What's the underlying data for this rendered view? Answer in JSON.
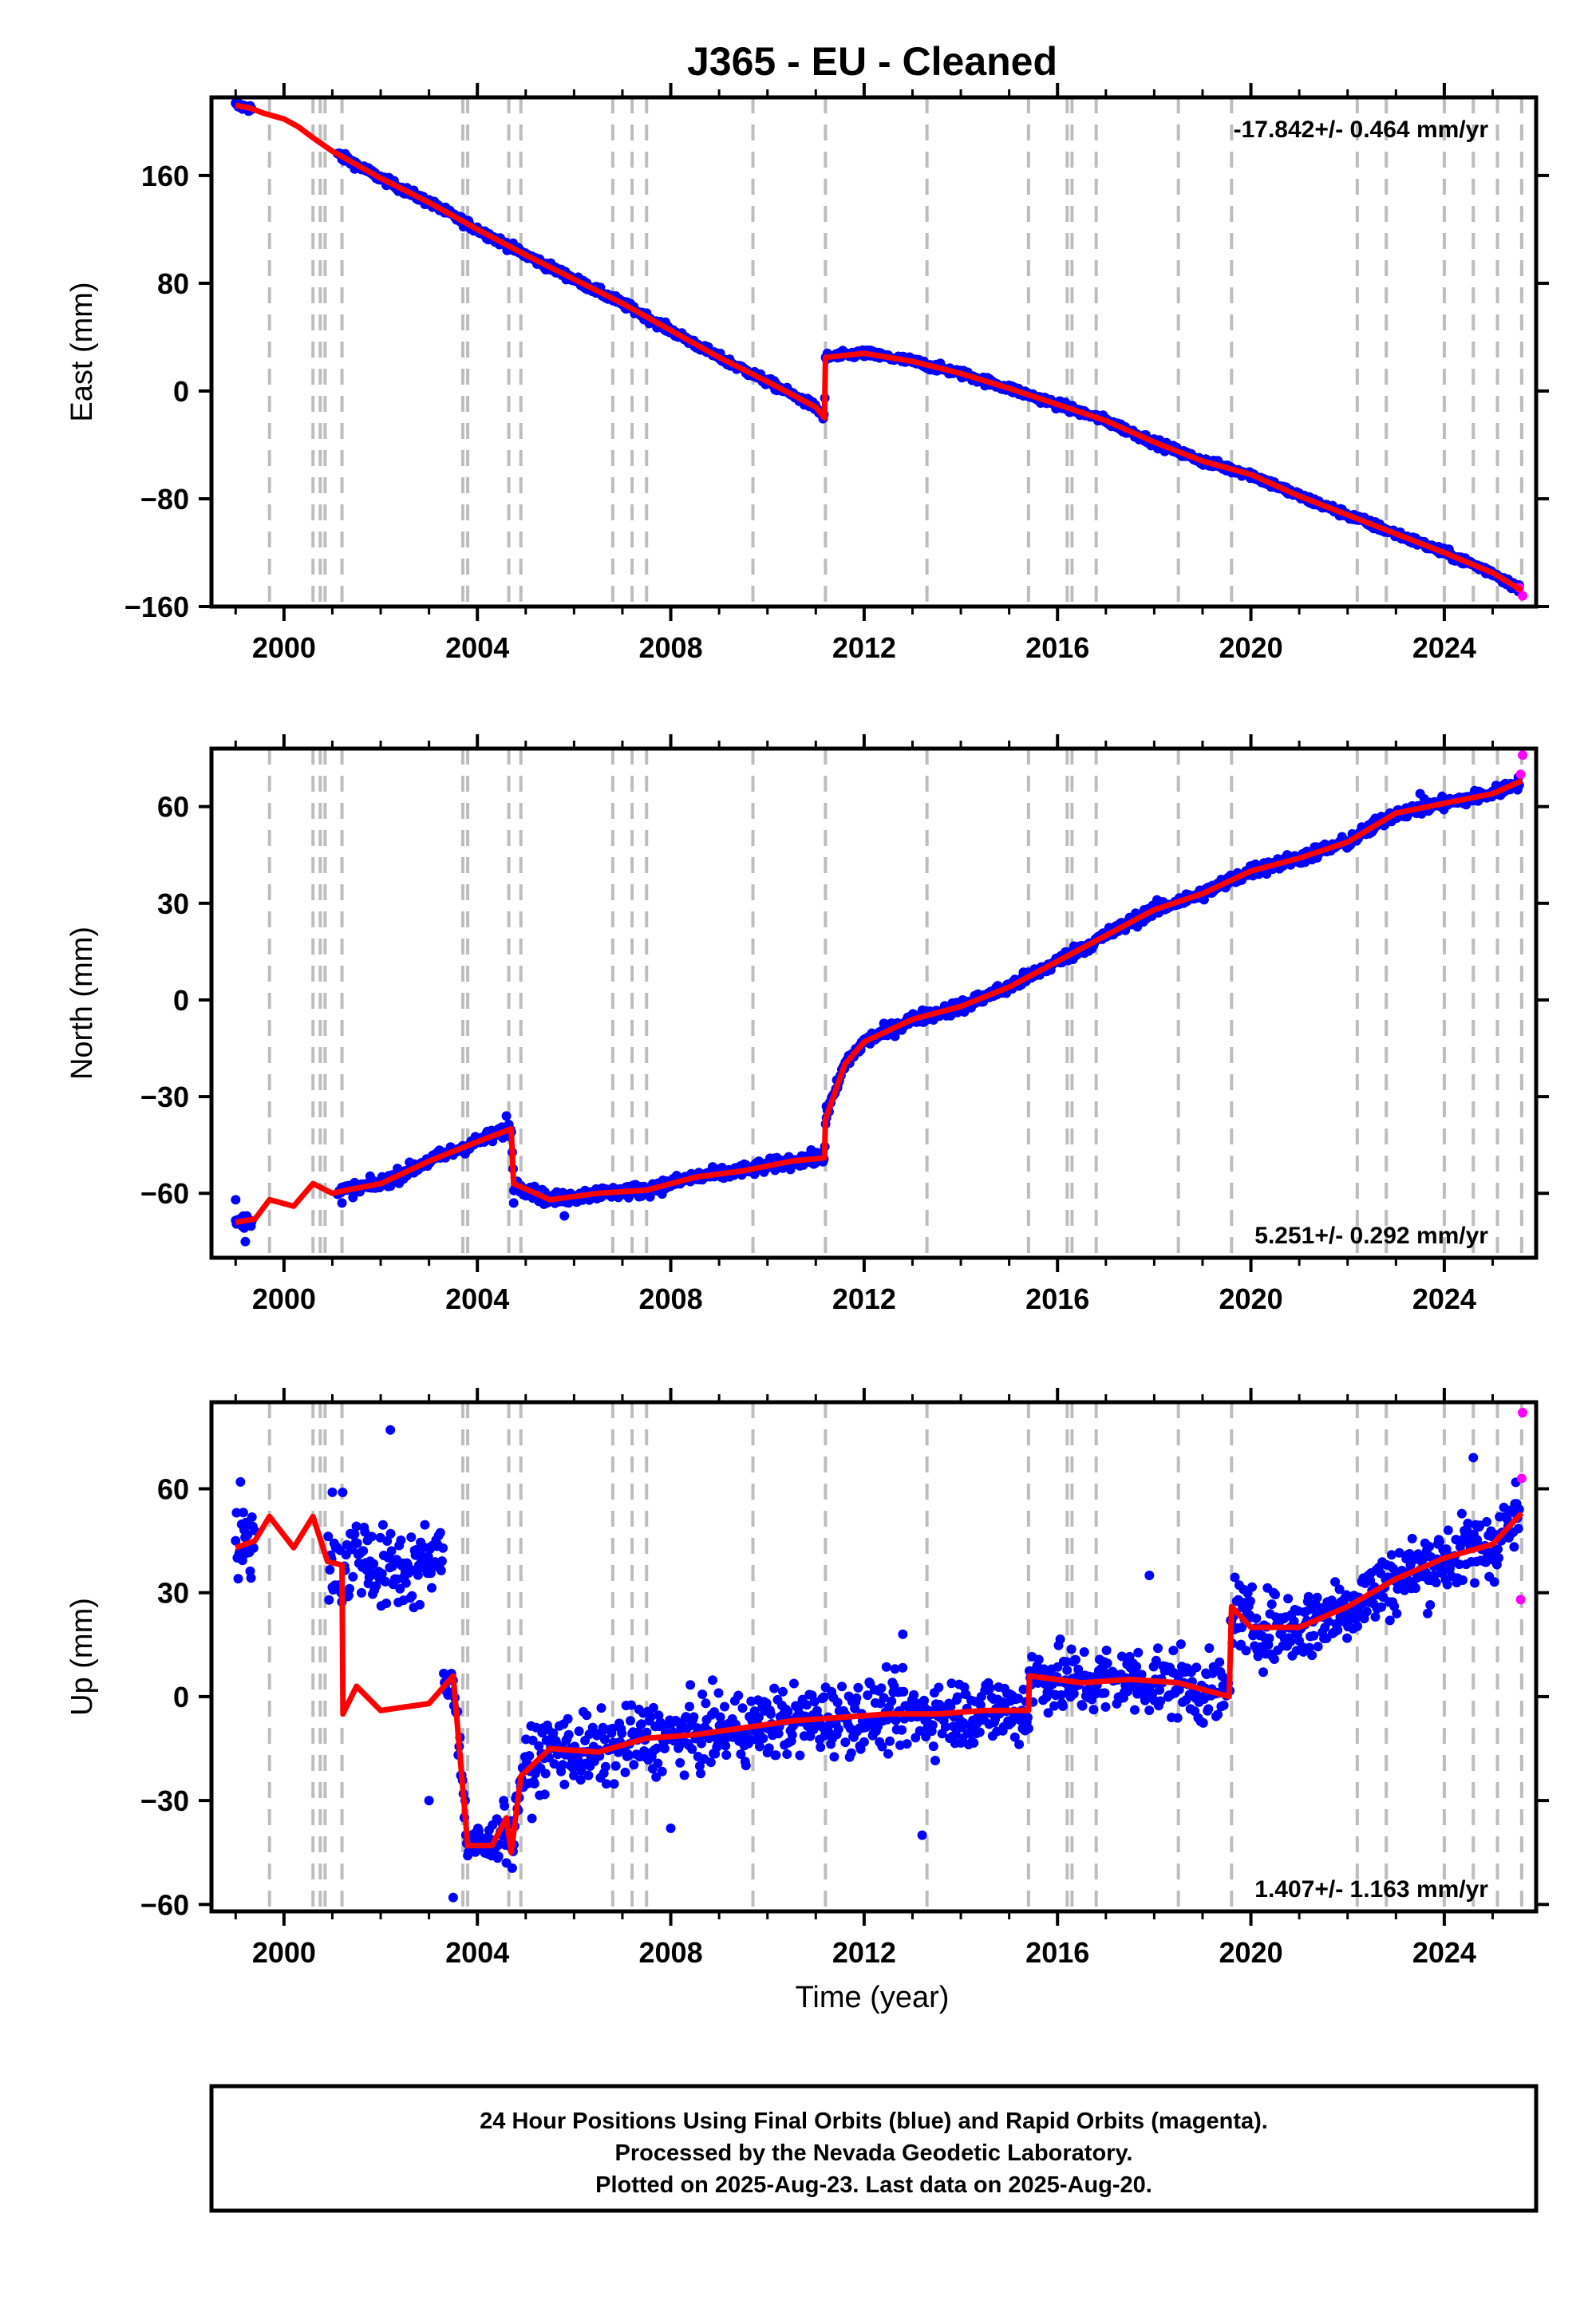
{
  "page": {
    "title": "J365  - EU - Cleaned",
    "xlabel": "Time (year)",
    "footer": [
      "24 Hour Positions Using Final Orbits (blue) and Rapid Orbits (magenta).",
      "Processed by the Nevada Geodetic Laboratory.",
      "Plotted on 2025-Aug-23. Last data on 2025-Aug-20."
    ]
  },
  "colors": {
    "final_points": "#0000ff",
    "rapid_points": "#ff00ff",
    "model": "#ff0000",
    "event_lines": "#bdbdbd",
    "frame": "#000000"
  },
  "chart_data": [
    {
      "type": "scatter",
      "panel": "east",
      "ylabel": "East (mm)",
      "rate_text": "-17.842+/- 0.464 mm/yr",
      "rate_position": "top-right",
      "xlim": [
        1998.5,
        2025.9
      ],
      "ylim": [
        -160,
        218
      ],
      "yticks": [
        -160,
        -80,
        0,
        80,
        160
      ],
      "xticks": [
        2000,
        2004,
        2008,
        2012,
        2016,
        2020,
        2024
      ],
      "grid": false,
      "event_lines": [
        1999.7,
        2000.6,
        2000.75,
        2000.85,
        2001.2,
        2003.7,
        2003.8,
        2004.65,
        2004.9,
        2006.8,
        2007.2,
        2007.5,
        2009.7,
        2011.2,
        2013.3,
        2015.4,
        2016.2,
        2016.3,
        2016.8,
        2018.5,
        2019.6,
        2022.2,
        2022.8,
        2024.0,
        2024.6,
        2025.1,
        2025.6
      ],
      "model_line": [
        [
          1999.0,
          212
        ],
        [
          1999.3,
          210
        ],
        [
          1999.6,
          206
        ],
        [
          2000.0,
          202
        ],
        [
          2000.3,
          196
        ],
        [
          2000.6,
          188
        ],
        [
          2001.0,
          178
        ],
        [
          2001.3,
          172
        ],
        [
          2002.0,
          158
        ],
        [
          2003.0,
          140
        ],
        [
          2004.0,
          120
        ],
        [
          2005.0,
          101
        ],
        [
          2006.0,
          83
        ],
        [
          2007.0,
          65
        ],
        [
          2008.0,
          45
        ],
        [
          2009.0,
          25
        ],
        [
          2010.0,
          7
        ],
        [
          2011.0,
          -12
        ],
        [
          2011.18,
          -20
        ],
        [
          2011.2,
          25
        ],
        [
          2012.0,
          28
        ],
        [
          2013.0,
          22
        ],
        [
          2014.0,
          13
        ],
        [
          2015.0,
          2
        ],
        [
          2016.0,
          -10
        ],
        [
          2017.0,
          -22
        ],
        [
          2018.0,
          -38
        ],
        [
          2019.0,
          -52
        ],
        [
          2020.0,
          -62
        ],
        [
          2021.0,
          -78
        ],
        [
          2022.0,
          -92
        ],
        [
          2023.0,
          -106
        ],
        [
          2024.0,
          -120
        ],
        [
          2025.0,
          -135
        ],
        [
          2025.6,
          -148
        ]
      ],
      "final_anchors": [
        [
          1999.0,
          214
        ],
        [
          1999.3,
          211
        ],
        [
          2001.2,
          172
        ],
        [
          2011.15,
          -20
        ],
        [
          2011.22,
          24
        ],
        [
          2012.0,
          30
        ],
        [
          2013.0,
          23
        ],
        [
          2025.5,
          -146
        ]
      ],
      "final_scatter_mm": 3,
      "rapid_anchors": [
        [
          2025.55,
          -146
        ],
        [
          2025.62,
          -152
        ]
      ]
    },
    {
      "type": "scatter",
      "panel": "north",
      "ylabel": "North (mm)",
      "rate_text": "5.251+/- 0.292 mm/yr",
      "rate_position": "bottom-right",
      "xlim": [
        1998.5,
        2025.9
      ],
      "ylim": [
        -80,
        78
      ],
      "yticks": [
        -60,
        -30,
        0,
        30,
        60
      ],
      "xticks": [
        2000,
        2004,
        2008,
        2012,
        2016,
        2020,
        2024
      ],
      "grid": false,
      "event_lines": [
        1999.7,
        2000.6,
        2000.75,
        2000.85,
        2001.2,
        2003.7,
        2003.8,
        2004.65,
        2004.9,
        2006.8,
        2007.2,
        2007.5,
        2009.7,
        2011.2,
        2013.3,
        2015.4,
        2016.2,
        2016.3,
        2016.8,
        2018.5,
        2019.6,
        2022.2,
        2022.8,
        2024.0,
        2024.6,
        2025.1,
        2025.6
      ],
      "model_line": [
        [
          1999.0,
          -69
        ],
        [
          1999.4,
          -68
        ],
        [
          1999.7,
          -62
        ],
        [
          2000.2,
          -64
        ],
        [
          2000.6,
          -57
        ],
        [
          2001.0,
          -60
        ],
        [
          2001.3,
          -59
        ],
        [
          2002.0,
          -57
        ],
        [
          2003.0,
          -50
        ],
        [
          2004.0,
          -44
        ],
        [
          2004.7,
          -40
        ],
        [
          2004.75,
          -57
        ],
        [
          2005.5,
          -62
        ],
        [
          2006.5,
          -60
        ],
        [
          2007.5,
          -59
        ],
        [
          2008.5,
          -55
        ],
        [
          2009.5,
          -53
        ],
        [
          2010.5,
          -50
        ],
        [
          2011.18,
          -49
        ],
        [
          2011.2,
          -37
        ],
        [
          2011.6,
          -20
        ],
        [
          2012.0,
          -13
        ],
        [
          2013.0,
          -6
        ],
        [
          2014.0,
          -2
        ],
        [
          2015.0,
          4
        ],
        [
          2016.0,
          12
        ],
        [
          2017.0,
          20
        ],
        [
          2018.0,
          28
        ],
        [
          2019.0,
          33
        ],
        [
          2020.0,
          40
        ],
        [
          2021.0,
          44
        ],
        [
          2022.0,
          49
        ],
        [
          2023.0,
          58
        ],
        [
          2024.0,
          61
        ],
        [
          2025.0,
          64
        ],
        [
          2025.6,
          68
        ]
      ],
      "final_anchors": [
        [
          1999.0,
          -62
        ],
        [
          1999.2,
          -75
        ],
        [
          2001.2,
          -63
        ],
        [
          2004.6,
          -36
        ],
        [
          2004.75,
          -63
        ],
        [
          2005.8,
          -67
        ],
        [
          2011.15,
          -50
        ],
        [
          2011.22,
          -33
        ],
        [
          2023.5,
          64
        ],
        [
          2025.5,
          67
        ]
      ],
      "final_scatter_mm": 2,
      "rapid_anchors": [
        [
          2025.58,
          70
        ],
        [
          2025.62,
          76
        ]
      ]
    },
    {
      "type": "scatter",
      "panel": "up",
      "ylabel": "Up (mm)",
      "rate_text": "1.407+/- 1.163 mm/yr",
      "rate_position": "bottom-right",
      "xlim": [
        1998.5,
        2025.9
      ],
      "ylim": [
        -62,
        85
      ],
      "yticks": [
        -60,
        -30,
        0,
        30,
        60
      ],
      "xticks": [
        2000,
        2004,
        2008,
        2012,
        2016,
        2020,
        2024
      ],
      "grid": false,
      "event_lines": [
        1999.7,
        2000.6,
        2000.75,
        2000.85,
        2001.2,
        2003.7,
        2003.8,
        2004.65,
        2004.9,
        2006.8,
        2007.2,
        2007.5,
        2009.7,
        2011.2,
        2013.3,
        2015.4,
        2016.2,
        2016.3,
        2016.8,
        2018.5,
        2019.6,
        2022.2,
        2022.8,
        2024.0,
        2024.6,
        2025.1,
        2025.6
      ],
      "model_line": [
        [
          1999.0,
          43
        ],
        [
          1999.4,
          45
        ],
        [
          1999.7,
          52
        ],
        [
          2000.2,
          43
        ],
        [
          2000.6,
          52
        ],
        [
          2000.9,
          39
        ],
        [
          2001.2,
          38
        ],
        [
          2001.22,
          -5
        ],
        [
          2001.5,
          3
        ],
        [
          2002.0,
          -4
        ],
        [
          2002.5,
          -3
        ],
        [
          2003.0,
          -2
        ],
        [
          2003.5,
          6
        ],
        [
          2003.8,
          -43
        ],
        [
          2004.3,
          -43
        ],
        [
          2004.6,
          -35
        ],
        [
          2004.7,
          -45
        ],
        [
          2004.9,
          -23
        ],
        [
          2005.5,
          -15
        ],
        [
          2006.5,
          -16
        ],
        [
          2007.5,
          -12
        ],
        [
          2008.5,
          -11
        ],
        [
          2009.5,
          -9
        ],
        [
          2010.5,
          -7
        ],
        [
          2011.5,
          -6
        ],
        [
          2012.5,
          -5
        ],
        [
          2013.5,
          -5
        ],
        [
          2014.5,
          -4
        ],
        [
          2015.4,
          -4
        ],
        [
          2015.42,
          6
        ],
        [
          2016.5,
          4
        ],
        [
          2017.5,
          5
        ],
        [
          2018.5,
          4
        ],
        [
          2019.55,
          0
        ],
        [
          2019.6,
          26
        ],
        [
          2020.0,
          20
        ],
        [
          2021.0,
          20
        ],
        [
          2022.0,
          26
        ],
        [
          2023.0,
          34
        ],
        [
          2024.0,
          40
        ],
        [
          2025.0,
          44
        ],
        [
          2025.6,
          53
        ]
      ],
      "final_anchors": [
        [
          1999.1,
          62
        ],
        [
          2001.0,
          59
        ],
        [
          2002.2,
          77
        ],
        [
          2003.0,
          -30
        ],
        [
          2003.5,
          -58
        ],
        [
          2004.6,
          -48
        ],
        [
          2008.0,
          -38
        ],
        [
          2013.2,
          -40
        ],
        [
          2012.8,
          18
        ],
        [
          2017.9,
          35
        ],
        [
          2024.6,
          69
        ]
      ],
      "final_scatter_mm": 10,
      "rapid_anchors": [
        [
          2025.58,
          28
        ],
        [
          2025.6,
          63
        ],
        [
          2025.62,
          82
        ]
      ]
    }
  ]
}
